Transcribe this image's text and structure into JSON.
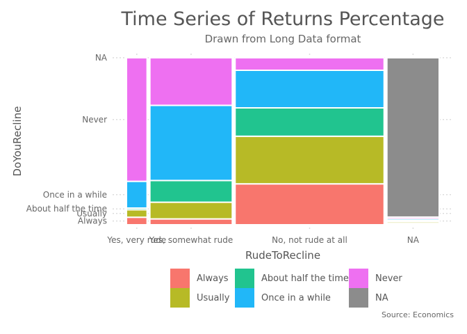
{
  "chart_data": {
    "type": "mosaic",
    "title": "Time Series of Returns Percentage",
    "subtitle": "Drawn from Long Data format",
    "xlabel": "RudeToRecline",
    "ylabel": "DoYouRecline",
    "caption": "Source: Economics",
    "categories": [
      "Yes, very rude",
      "Yes, somewhat rude",
      "No, not rude at all",
      "NA"
    ],
    "levels": [
      "Always",
      "Usually",
      "About half the time",
      "Once in a while",
      "Never",
      "NA"
    ],
    "y_tick_labels": [
      "Always",
      "Usually",
      "About half the time",
      "Once in a while",
      "Never",
      "NA"
    ],
    "column_widths": [
      0.13,
      0.52,
      0.94,
      0.33
    ],
    "series": [
      {
        "name": "Always",
        "color": "#F8766D",
        "values": [
          0.045,
          0.035,
          0.245,
          0.008
        ]
      },
      {
        "name": "Usually",
        "color": "#B7BA26",
        "values": [
          0.045,
          0.1,
          0.285,
          0.01
        ]
      },
      {
        "name": "About half the time",
        "color": "#21C48F",
        "values": [
          0.01,
          0.13,
          0.17,
          0.008
        ]
      },
      {
        "name": "Once in a while",
        "color": "#21B7F8",
        "values": [
          0.16,
          0.45,
          0.225,
          0.01
        ]
      },
      {
        "name": "Never",
        "color": "#EE70F1",
        "values": [
          0.74,
          0.285,
          0.075,
          0.01
        ]
      },
      {
        "name": "NA",
        "color": "#8C8C8C",
        "values": [
          0.0,
          0.0,
          0.0,
          0.954
        ]
      }
    ],
    "legend": {
      "placement": "bottom",
      "items": [
        {
          "label": "Always",
          "color": "#F8766D"
        },
        {
          "label": "About half the time",
          "color": "#21C48F"
        },
        {
          "label": "Never",
          "color": "#EE70F1"
        },
        {
          "label": "Usually",
          "color": "#B7BA26"
        },
        {
          "label": "Once in a while",
          "color": "#21B7F8"
        },
        {
          "label": "NA",
          "color": "#8C8C8C"
        }
      ]
    },
    "grid": true
  }
}
